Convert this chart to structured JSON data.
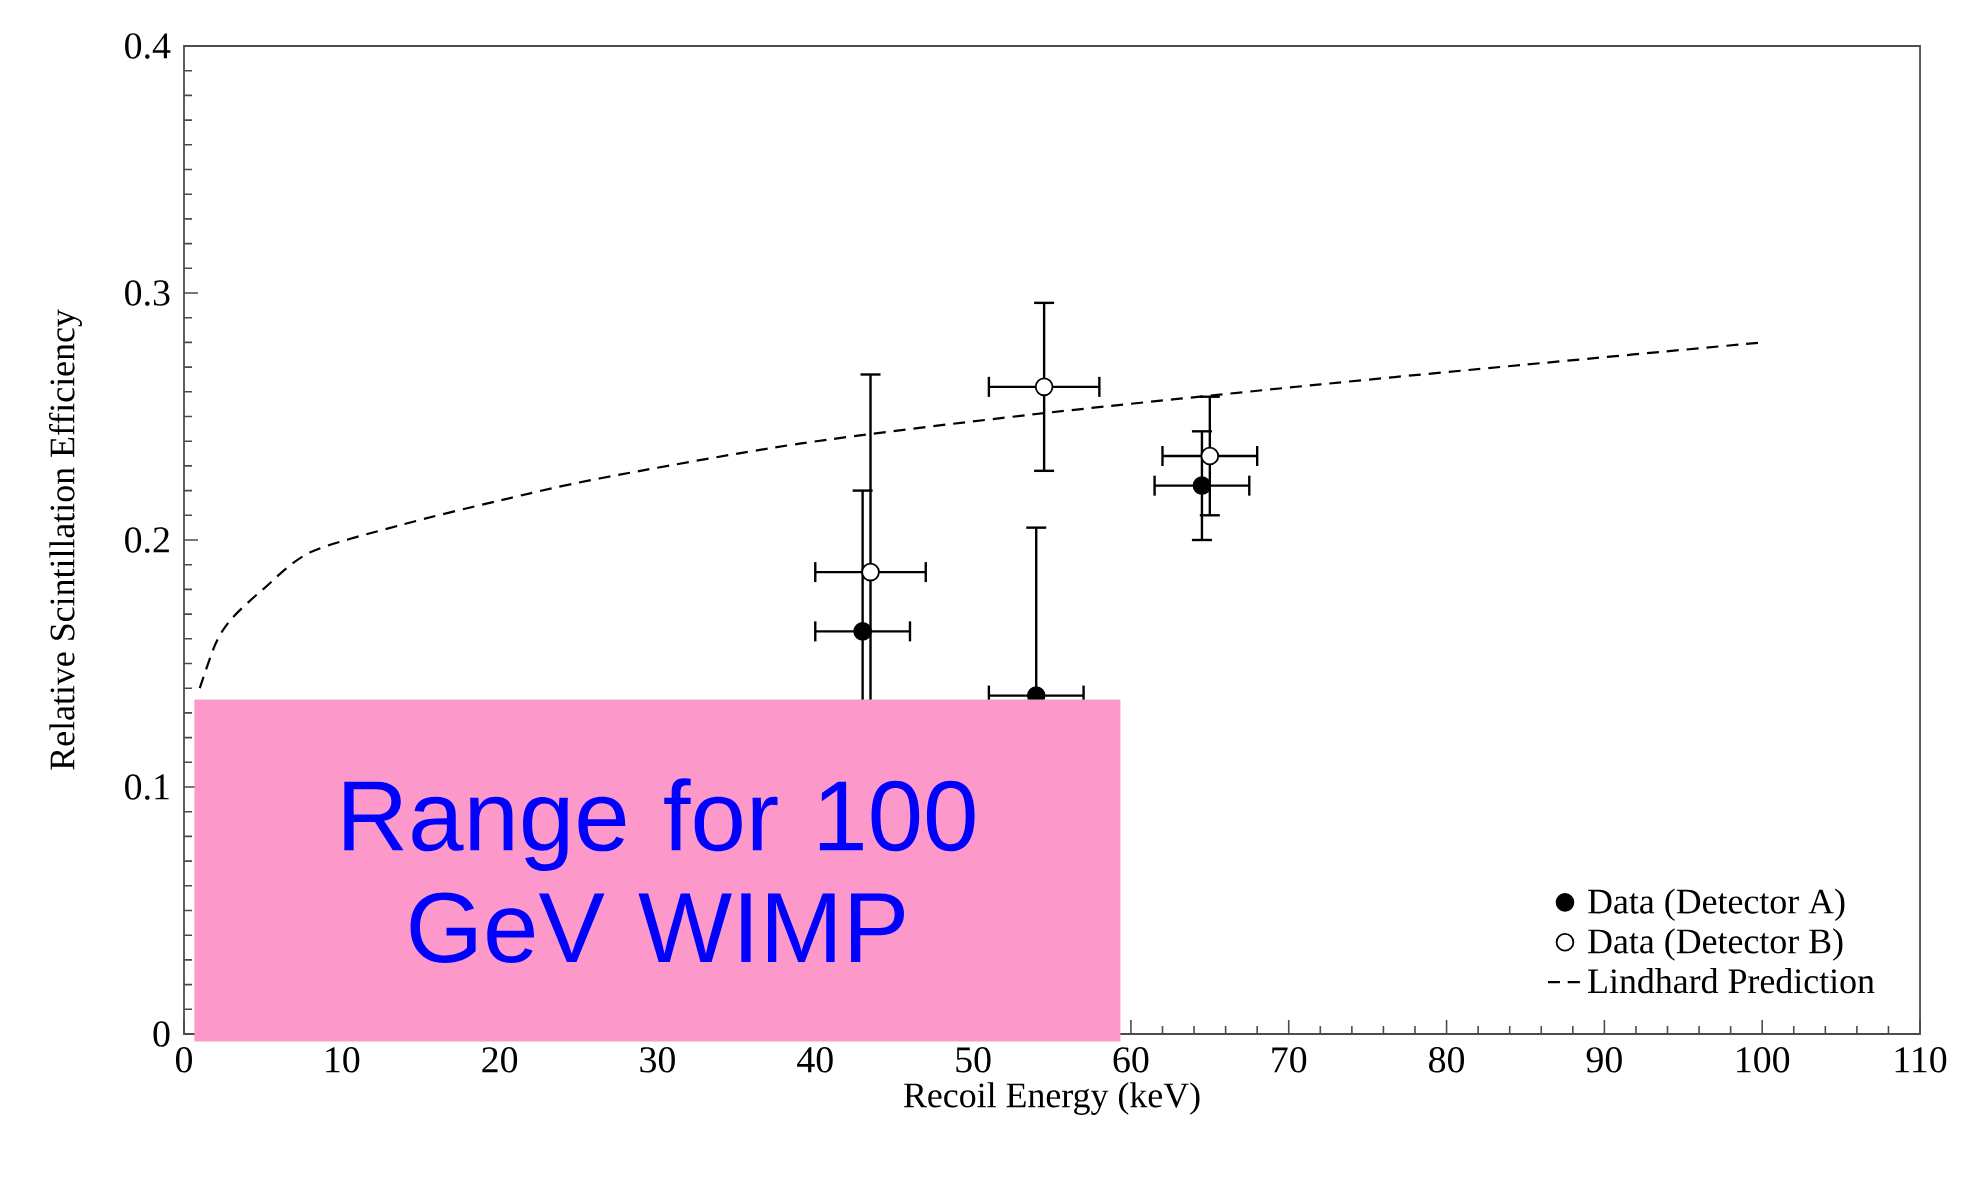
{
  "chart_data": {
    "type": "scatter",
    "xlabel": "Recoil Energy (keV)",
    "ylabel": "Relative Scintillation Efficiency",
    "xlim": [
      0,
      110
    ],
    "xticks": [
      0,
      10,
      20,
      30,
      40,
      50,
      60,
      70,
      80,
      90,
      100,
      110
    ],
    "ylim": [
      0,
      0.4
    ],
    "yticks": [
      0,
      0.1,
      0.2,
      0.3,
      0.4
    ],
    "legend": "bottom right",
    "grid": false,
    "annotations": [
      "Range for 100 GeV WIMP"
    ],
    "series": [
      {
        "name": "Data (Detector A)",
        "marker": "circle",
        "color": "#000000",
        "x": [
          43,
          54,
          64.5
        ],
        "values": [
          0.163,
          0.137,
          0.222
        ],
        "errors": [
          0.057,
          0.068,
          0.022
        ],
        "xerrors": [
          3,
          3,
          3
        ]
      },
      {
        "name": "Data (Detector B)",
        "marker": "circle",
        "color": "#ffffff",
        "x": [
          43.5,
          54.5,
          65
        ],
        "values": [
          0.187,
          0.262,
          0.234
        ],
        "errors": [
          0.08,
          0.034,
          0.024
        ],
        "xerrors": [
          3.5,
          3.5,
          3
        ]
      },
      {
        "name": "Lindhard Prediction",
        "type": "line",
        "line_style": "dashed",
        "marker": "none",
        "color": "#000000",
        "x": [
          1,
          2,
          3,
          5,
          8,
          13.7,
          20,
          26.4,
          39,
          54,
          72,
          85,
          100
        ],
        "values": [
          0.14,
          0.158,
          0.168,
          0.18,
          0.195,
          0.206,
          0.216,
          0.225,
          0.239,
          0.251,
          0.263,
          0.271,
          0.28
        ]
      }
    ]
  }
}
